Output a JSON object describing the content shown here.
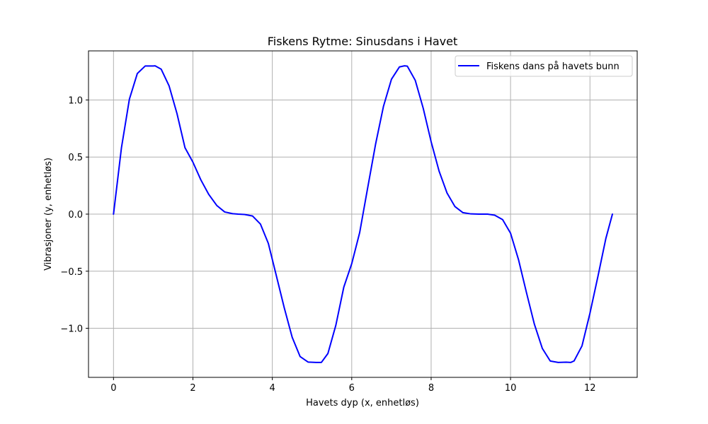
{
  "chart_data": {
    "type": "line",
    "title": "Fiskens Rytme: Sinusdans i Havet",
    "xlabel": "Havets dyp (x, enhetløs)",
    "ylabel": "Vibrasjoner (y, enhetløs)",
    "xlim": [
      -0.63,
      13.19
    ],
    "ylim": [
      -1.43,
      1.43
    ],
    "x_ticks": [
      0,
      2,
      4,
      6,
      8,
      10,
      12
    ],
    "y_ticks": [
      -1.0,
      -0.5,
      0.0,
      0.5,
      1.0
    ],
    "x_tick_labels": [
      "0",
      "2",
      "4",
      "6",
      "8",
      "10",
      "12"
    ],
    "y_tick_labels": [
      "−1.0",
      "−0.5",
      "0.0",
      "0.5",
      "1.0"
    ],
    "grid": true,
    "legend_position": "top-right",
    "series": [
      {
        "name": "Fiskens dans på havets bunn",
        "color": "#0000ff",
        "x": [
          0,
          0.2,
          0.4,
          0.6,
          0.8,
          1.0,
          1.047,
          1.2,
          1.4,
          1.6,
          1.8,
          2.0,
          2.2,
          2.4,
          2.6,
          2.8,
          3.0,
          3.14,
          3.3,
          3.5,
          3.7,
          3.9,
          4.1,
          4.3,
          4.5,
          4.7,
          4.9,
          5.1,
          5.236,
          5.4,
          5.6,
          5.8,
          6.0,
          6.2,
          6.283,
          6.4,
          6.6,
          6.8,
          7.0,
          7.2,
          7.33,
          7.4,
          7.6,
          7.8,
          8.0,
          8.2,
          8.4,
          8.6,
          8.8,
          9.0,
          9.2,
          9.42,
          9.6,
          9.8,
          10.0,
          10.2,
          10.4,
          10.6,
          10.8,
          11.0,
          11.2,
          11.4,
          11.519,
          11.6,
          11.8,
          12.0,
          12.2,
          12.4,
          12.566
        ],
        "y": [
          0.0,
          0.581,
          1.007,
          1.232,
          1.298,
          1.298,
          1.299,
          1.27,
          1.123,
          0.879,
          0.582,
          0.455,
          0.3,
          0.172,
          0.076,
          0.019,
          0.004,
          0.0,
          -0.003,
          -0.016,
          -0.087,
          -0.257,
          -0.538,
          -0.82,
          -1.079,
          -1.248,
          -1.296,
          -1.299,
          -1.299,
          -1.221,
          -0.973,
          -0.64,
          -0.434,
          -0.162,
          0.0,
          0.227,
          0.612,
          0.945,
          1.181,
          1.289,
          1.299,
          1.296,
          1.172,
          0.928,
          0.634,
          0.377,
          0.185,
          0.066,
          0.013,
          0.002,
          0.0,
          0.0,
          -0.009,
          -0.048,
          -0.167,
          -0.398,
          -0.686,
          -0.964,
          -1.176,
          -1.287,
          -1.299,
          -1.297,
          -1.299,
          -1.286,
          -1.154,
          -0.868,
          -0.547,
          -0.214,
          0.0
        ]
      }
    ]
  }
}
